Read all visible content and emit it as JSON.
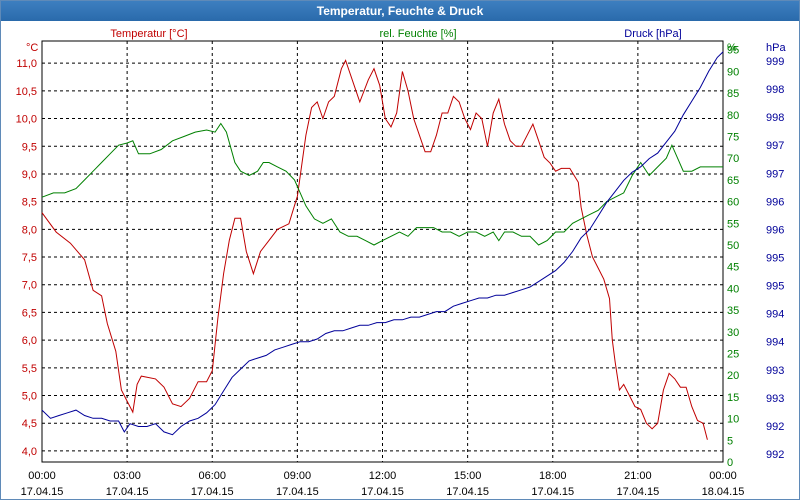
{
  "window": {
    "title": "Temperatur, Feuchte & Druck"
  },
  "colors": {
    "temperature": "#c00000",
    "humidity": "#008000",
    "pressure": "#000099",
    "grid": "#000000"
  },
  "chart_data": {
    "type": "line",
    "title": "Temperatur, Feuchte & Druck",
    "grid": true,
    "x_ticks": [
      {
        "time": "00:00",
        "date": "17.04.15"
      },
      {
        "time": "03:00",
        "date": "17.04.15"
      },
      {
        "time": "06:00",
        "date": "17.04.15"
      },
      {
        "time": "09:00",
        "date": "17.04.15"
      },
      {
        "time": "12:00",
        "date": "17.04.15"
      },
      {
        "time": "15:00",
        "date": "17.04.15"
      },
      {
        "time": "18:00",
        "date": "17.04.15"
      },
      {
        "time": "21:00",
        "date": "17.04.15"
      },
      {
        "time": "00:00",
        "date": "18.04.15"
      }
    ],
    "x_range_hours": [
      0,
      24
    ],
    "axes": {
      "temperature": {
        "label": "Temperatur [°C]",
        "unit": "°C",
        "range": [
          3.8,
          11.4
        ],
        "ticks": [
          "4,0",
          "4,5",
          "5,0",
          "5,5",
          "6,0",
          "6,5",
          "7,0",
          "7,5",
          "8,0",
          "8,5",
          "9,0",
          "9,5",
          "10,0",
          "10,5",
          "11,0"
        ]
      },
      "humidity": {
        "label": "rel. Feuchte [%]",
        "unit": "%",
        "range": [
          0,
          97
        ],
        "ticks": [
          "0",
          "5",
          "10",
          "15",
          "20",
          "25",
          "30",
          "35",
          "40",
          "45",
          "50",
          "55",
          "60",
          "65",
          "70",
          "75",
          "80",
          "85",
          "90",
          "95"
        ]
      },
      "pressure": {
        "label": "Druck [hPa]",
        "unit": "hPa",
        "range": [
          991.8,
          999.5
        ],
        "ticks": [
          "992",
          "992",
          "993",
          "993",
          "994",
          "994",
          "995",
          "995",
          "996",
          "996",
          "997",
          "997",
          "998",
          "998",
          "999"
        ]
      }
    },
    "series": [
      {
        "name": "Temperatur [°C]",
        "axis": "temperature",
        "points": [
          [
            0,
            8.3
          ],
          [
            0.5,
            7.95
          ],
          [
            1,
            7.75
          ],
          [
            1.5,
            7.45
          ],
          [
            1.8,
            6.9
          ],
          [
            2.1,
            6.8
          ],
          [
            2.3,
            6.3
          ],
          [
            2.6,
            5.8
          ],
          [
            2.8,
            5.1
          ],
          [
            3.0,
            4.9
          ],
          [
            3.2,
            4.7
          ],
          [
            3.35,
            5.2
          ],
          [
            3.5,
            5.35
          ],
          [
            4.0,
            5.3
          ],
          [
            4.3,
            5.15
          ],
          [
            4.6,
            4.85
          ],
          [
            4.9,
            4.8
          ],
          [
            5.2,
            4.95
          ],
          [
            5.5,
            5.25
          ],
          [
            5.8,
            5.25
          ],
          [
            6.0,
            5.45
          ],
          [
            6.2,
            6.4
          ],
          [
            6.4,
            7.2
          ],
          [
            6.6,
            7.8
          ],
          [
            6.8,
            8.2
          ],
          [
            7.0,
            8.2
          ],
          [
            7.2,
            7.6
          ],
          [
            7.45,
            7.2
          ],
          [
            7.7,
            7.6
          ],
          [
            8.0,
            7.8
          ],
          [
            8.3,
            8.0
          ],
          [
            8.7,
            8.1
          ],
          [
            9.0,
            8.6
          ],
          [
            9.3,
            9.7
          ],
          [
            9.5,
            10.2
          ],
          [
            9.7,
            10.3
          ],
          [
            9.9,
            10.0
          ],
          [
            10.1,
            10.3
          ],
          [
            10.3,
            10.4
          ],
          [
            10.55,
            10.9
          ],
          [
            10.7,
            11.05
          ],
          [
            11.0,
            10.6
          ],
          [
            11.2,
            10.3
          ],
          [
            11.5,
            10.7
          ],
          [
            11.7,
            10.9
          ],
          [
            11.9,
            10.6
          ],
          [
            12.1,
            10.0
          ],
          [
            12.3,
            9.85
          ],
          [
            12.5,
            10.1
          ],
          [
            12.7,
            10.85
          ],
          [
            12.9,
            10.5
          ],
          [
            13.1,
            10.0
          ],
          [
            13.3,
            9.7
          ],
          [
            13.5,
            9.4
          ],
          [
            13.7,
            9.4
          ],
          [
            13.9,
            9.7
          ],
          [
            14.1,
            10.1
          ],
          [
            14.3,
            10.1
          ],
          [
            14.5,
            10.4
          ],
          [
            14.7,
            10.3
          ],
          [
            14.9,
            10.0
          ],
          [
            15.1,
            9.8
          ],
          [
            15.3,
            10.1
          ],
          [
            15.5,
            10.0
          ],
          [
            15.7,
            9.5
          ],
          [
            15.9,
            10.1
          ],
          [
            16.1,
            10.35
          ],
          [
            16.3,
            9.9
          ],
          [
            16.5,
            9.6
          ],
          [
            16.7,
            9.5
          ],
          [
            16.9,
            9.5
          ],
          [
            17.1,
            9.7
          ],
          [
            17.3,
            9.9
          ],
          [
            17.5,
            9.6
          ],
          [
            17.7,
            9.3
          ],
          [
            17.9,
            9.2
          ],
          [
            18.1,
            9.05
          ],
          [
            18.3,
            9.1
          ],
          [
            18.6,
            9.1
          ],
          [
            18.9,
            8.85
          ],
          [
            19.0,
            8.4
          ],
          [
            19.2,
            7.9
          ],
          [
            19.4,
            7.5
          ],
          [
            19.6,
            7.3
          ],
          [
            19.8,
            7.1
          ],
          [
            20.0,
            6.75
          ],
          [
            20.1,
            6.0
          ],
          [
            20.2,
            5.6
          ],
          [
            20.35,
            5.1
          ],
          [
            20.5,
            5.2
          ],
          [
            20.7,
            5.0
          ],
          [
            20.9,
            4.8
          ],
          [
            21.1,
            4.75
          ],
          [
            21.3,
            4.5
          ],
          [
            21.5,
            4.4
          ],
          [
            21.7,
            4.5
          ],
          [
            21.9,
            5.1
          ],
          [
            22.1,
            5.4
          ],
          [
            22.3,
            5.3
          ],
          [
            22.5,
            5.15
          ],
          [
            22.7,
            5.15
          ],
          [
            22.9,
            4.8
          ],
          [
            23.1,
            4.55
          ],
          [
            23.3,
            4.5
          ],
          [
            23.45,
            4.2
          ]
        ]
      },
      {
        "name": "rel. Feuchte [%]",
        "axis": "humidity",
        "points": [
          [
            0,
            61
          ],
          [
            0.4,
            62
          ],
          [
            0.8,
            62
          ],
          [
            1.2,
            63
          ],
          [
            1.5,
            65
          ],
          [
            1.8,
            67
          ],
          [
            2.1,
            69
          ],
          [
            2.4,
            71
          ],
          [
            2.7,
            73
          ],
          [
            3.0,
            73.5
          ],
          [
            3.2,
            74
          ],
          [
            3.4,
            71
          ],
          [
            3.8,
            71
          ],
          [
            4.2,
            72
          ],
          [
            4.6,
            74
          ],
          [
            5.0,
            75
          ],
          [
            5.4,
            76
          ],
          [
            5.8,
            76.5
          ],
          [
            6.1,
            76
          ],
          [
            6.3,
            78
          ],
          [
            6.5,
            76
          ],
          [
            6.8,
            69
          ],
          [
            7.0,
            67
          ],
          [
            7.3,
            66
          ],
          [
            7.6,
            67
          ],
          [
            7.8,
            69
          ],
          [
            8.0,
            69
          ],
          [
            8.3,
            68
          ],
          [
            8.6,
            67
          ],
          [
            8.9,
            65
          ],
          [
            9.1,
            62
          ],
          [
            9.3,
            59
          ],
          [
            9.6,
            56
          ],
          [
            9.9,
            55
          ],
          [
            10.2,
            56
          ],
          [
            10.5,
            53
          ],
          [
            10.8,
            52
          ],
          [
            11.1,
            52
          ],
          [
            11.4,
            51
          ],
          [
            11.7,
            50
          ],
          [
            12.0,
            51
          ],
          [
            12.3,
            52
          ],
          [
            12.6,
            53
          ],
          [
            12.9,
            52
          ],
          [
            13.2,
            54
          ],
          [
            13.5,
            54
          ],
          [
            13.8,
            54
          ],
          [
            14.1,
            53
          ],
          [
            14.4,
            53
          ],
          [
            14.7,
            52
          ],
          [
            15.0,
            53
          ],
          [
            15.3,
            53
          ],
          [
            15.6,
            52
          ],
          [
            15.9,
            53
          ],
          [
            16.1,
            51
          ],
          [
            16.3,
            53
          ],
          [
            16.6,
            53
          ],
          [
            16.9,
            52
          ],
          [
            17.2,
            52
          ],
          [
            17.5,
            50
          ],
          [
            17.8,
            51
          ],
          [
            18.1,
            53
          ],
          [
            18.4,
            53
          ],
          [
            18.7,
            55
          ],
          [
            19.0,
            56
          ],
          [
            19.3,
            57
          ],
          [
            19.6,
            58
          ],
          [
            19.9,
            60
          ],
          [
            20.2,
            61
          ],
          [
            20.5,
            62
          ],
          [
            20.8,
            66
          ],
          [
            21.1,
            69
          ],
          [
            21.4,
            66
          ],
          [
            21.7,
            68
          ],
          [
            22.0,
            70
          ],
          [
            22.2,
            73
          ],
          [
            22.4,
            70
          ],
          [
            22.6,
            67
          ],
          [
            22.9,
            67
          ],
          [
            23.2,
            68
          ],
          [
            23.5,
            68
          ],
          [
            23.8,
            68
          ],
          [
            24.0,
            68
          ]
        ]
      },
      {
        "name": "Druck [hPa]",
        "axis": "pressure",
        "points": [
          [
            0,
            992.75
          ],
          [
            0.3,
            992.6
          ],
          [
            0.6,
            992.65
          ],
          [
            0.9,
            992.7
          ],
          [
            1.2,
            992.75
          ],
          [
            1.5,
            992.65
          ],
          [
            1.8,
            992.6
          ],
          [
            2.1,
            992.6
          ],
          [
            2.4,
            992.55
          ],
          [
            2.7,
            992.55
          ],
          [
            2.9,
            992.35
          ],
          [
            3.1,
            992.5
          ],
          [
            3.4,
            992.45
          ],
          [
            3.7,
            992.45
          ],
          [
            4.0,
            992.5
          ],
          [
            4.3,
            992.35
          ],
          [
            4.6,
            992.3
          ],
          [
            4.9,
            992.45
          ],
          [
            5.2,
            992.55
          ],
          [
            5.5,
            992.6
          ],
          [
            5.8,
            992.7
          ],
          [
            6.1,
            992.85
          ],
          [
            6.4,
            993.1
          ],
          [
            6.7,
            993.35
          ],
          [
            7.0,
            993.5
          ],
          [
            7.3,
            993.65
          ],
          [
            7.6,
            993.7
          ],
          [
            7.9,
            993.75
          ],
          [
            8.2,
            993.85
          ],
          [
            8.5,
            993.9
          ],
          [
            8.8,
            993.95
          ],
          [
            9.1,
            994.0
          ],
          [
            9.4,
            994.0
          ],
          [
            9.7,
            994.05
          ],
          [
            10.0,
            994.15
          ],
          [
            10.3,
            994.2
          ],
          [
            10.6,
            994.2
          ],
          [
            10.9,
            994.25
          ],
          [
            11.2,
            994.3
          ],
          [
            11.5,
            994.3
          ],
          [
            11.8,
            994.35
          ],
          [
            12.1,
            994.35
          ],
          [
            12.4,
            994.4
          ],
          [
            12.7,
            994.4
          ],
          [
            13.0,
            994.45
          ],
          [
            13.3,
            994.45
          ],
          [
            13.6,
            994.5
          ],
          [
            13.9,
            994.55
          ],
          [
            14.2,
            994.55
          ],
          [
            14.5,
            994.65
          ],
          [
            14.8,
            994.7
          ],
          [
            15.1,
            994.75
          ],
          [
            15.4,
            994.8
          ],
          [
            15.7,
            994.8
          ],
          [
            16.0,
            994.85
          ],
          [
            16.3,
            994.85
          ],
          [
            16.6,
            994.9
          ],
          [
            16.9,
            994.95
          ],
          [
            17.2,
            995.0
          ],
          [
            17.5,
            995.1
          ],
          [
            17.8,
            995.2
          ],
          [
            18.1,
            995.3
          ],
          [
            18.4,
            995.45
          ],
          [
            18.7,
            995.65
          ],
          [
            19.0,
            995.9
          ],
          [
            19.3,
            996.05
          ],
          [
            19.6,
            996.3
          ],
          [
            19.9,
            996.55
          ],
          [
            20.2,
            996.75
          ],
          [
            20.5,
            996.95
          ],
          [
            20.8,
            997.1
          ],
          [
            21.1,
            997.2
          ],
          [
            21.4,
            997.35
          ],
          [
            21.7,
            997.45
          ],
          [
            22.0,
            997.65
          ],
          [
            22.3,
            997.85
          ],
          [
            22.6,
            998.15
          ],
          [
            22.9,
            998.4
          ],
          [
            23.2,
            998.65
          ],
          [
            23.5,
            998.95
          ],
          [
            23.8,
            999.2
          ],
          [
            24.0,
            999.3
          ]
        ]
      }
    ]
  }
}
